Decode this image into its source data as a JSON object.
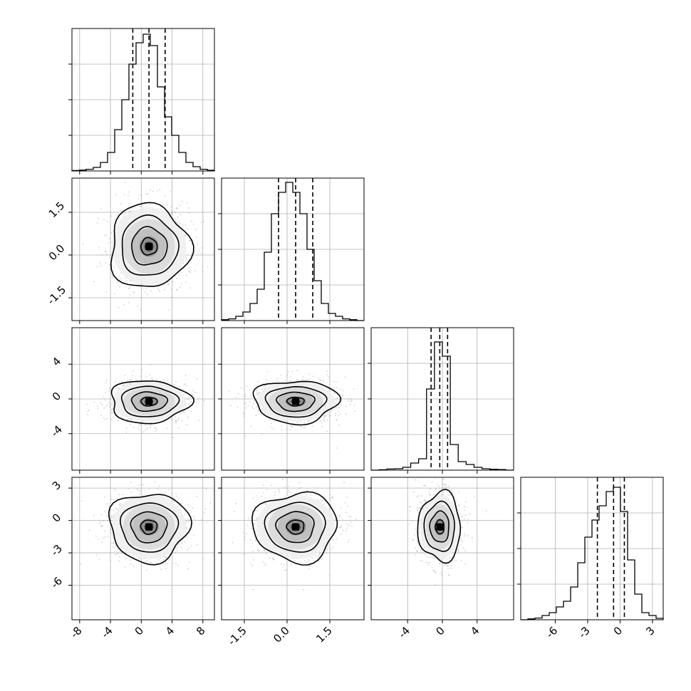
{
  "chart_data": {
    "type": "corner",
    "params": [
      {
        "range": [
          -9,
          9.5
        ],
        "ticks": [
          "-8",
          "-4",
          "0",
          "4",
          "8"
        ],
        "tick_values": [
          -8,
          -4,
          0,
          4,
          8
        ],
        "quantiles": [
          -1.1,
          1.0,
          3.1
        ],
        "hist": [
          0.003,
          0.006,
          0.012,
          0.025,
          0.06,
          0.13,
          0.29,
          0.5,
          0.75,
          0.9,
          0.96,
          0.88,
          0.59,
          0.38,
          0.25,
          0.13,
          0.06,
          0.03,
          0.012,
          0.005
        ],
        "hist_top_label": "",
        "center": 1.0,
        "sigma": 2.1
      },
      {
        "range": [
          -2.3,
          2.7
        ],
        "ticks": [
          "-1.5",
          "0.0",
          "1.5"
        ],
        "tick_values": [
          -1.5,
          0.0,
          1.5
        ],
        "quantiles": [
          -0.3,
          0.3,
          0.9
        ],
        "hist": [
          0.006,
          0.012,
          0.03,
          0.06,
          0.12,
          0.22,
          0.48,
          0.75,
          0.9,
          0.97,
          0.9,
          0.75,
          0.5,
          0.28,
          0.12,
          0.05,
          0.03,
          0.012,
          0.006,
          0.0
        ],
        "center": 0.3,
        "sigma": 0.6
      },
      {
        "range": [
          -8.2,
          8.2
        ],
        "ticks": [
          "-4",
          "0",
          "4"
        ],
        "tick_values": [
          -4,
          0,
          4
        ],
        "quantiles": [
          -1.3,
          -0.3,
          0.6
        ],
        "hist": [
          0.0,
          0.003,
          0.008,
          0.01,
          0.02,
          0.05,
          0.08,
          0.57,
          0.9,
          0.8,
          0.18,
          0.06,
          0.04,
          0.02,
          0.01,
          0.006,
          0.004,
          0.0
        ],
        "center": -0.3,
        "sigma": 1.0
      },
      {
        "range": [
          -9.2,
          4.0
        ],
        "ticks": [
          "-6",
          "-3",
          "0",
          "3"
        ],
        "tick_values": [
          -6,
          -3,
          0,
          3
        ],
        "quantiles": [
          -2.1,
          -0.6,
          0.4
        ],
        "hist": [
          0.0,
          0.006,
          0.012,
          0.03,
          0.05,
          0.09,
          0.13,
          0.23,
          0.4,
          0.58,
          0.7,
          0.8,
          0.9,
          0.93,
          0.76,
          0.42,
          0.18,
          0.05,
          0.03,
          0.01
        ],
        "center": -0.6,
        "sigma": 1.3
      }
    ],
    "contour_levels": [
      0.12,
      0.4,
      0.75,
      0.92
    ],
    "grid": true,
    "legend": "none"
  }
}
